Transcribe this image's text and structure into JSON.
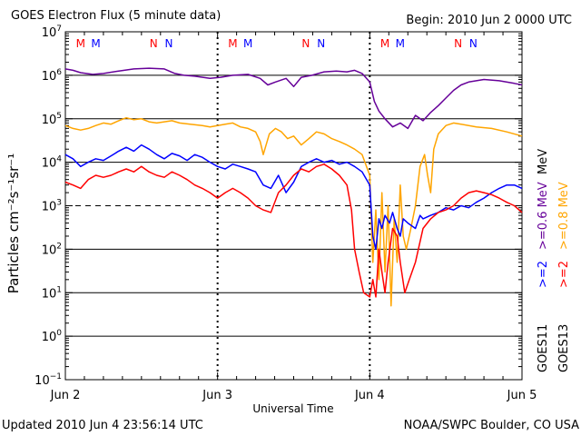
{
  "header": {
    "title": "GOES Electron Flux (5 minute data)",
    "begin": "Begin: 2010 Jun 2 0000 UTC"
  },
  "footer": {
    "updated": "Updated 2010 Jun  4 23:56:14 UTC",
    "credit": "NOAA/SWPC Boulder, CO USA"
  },
  "axes": {
    "xlabel": "Universal Time",
    "ylabel": "Particles cm⁻²s⁻¹sr⁻¹",
    "x_ticks": [
      "Jun 2",
      "Jun 3",
      "Jun 4",
      "Jun 5"
    ],
    "y_ticks": [
      {
        "exp": -1,
        "label": "10",
        "sup": "−1"
      },
      {
        "exp": 0,
        "label": "10",
        "sup": "0"
      },
      {
        "exp": 1,
        "label": "10",
        "sup": "1"
      },
      {
        "exp": 2,
        "label": "10",
        "sup": "2"
      },
      {
        "exp": 3,
        "label": "10",
        "sup": "3"
      },
      {
        "exp": 4,
        "label": "10",
        "sup": "4"
      },
      {
        "exp": 5,
        "label": "10",
        "sup": "5"
      },
      {
        "exp": 6,
        "label": "10",
        "sup": "6"
      },
      {
        "exp": 7,
        "label": "10",
        "sup": "7"
      }
    ]
  },
  "legend": {
    "satellite_1": "GOES11",
    "satellite_2": "GOES13",
    "e06_label": ">=0.6 MeV",
    "e08_label": ">=0.8 MeV",
    "e2_label_1": ">=2",
    "e2_label_2": ">=2",
    "mev": "MeV"
  },
  "markers": [
    {
      "day": 0.1,
      "label": "M",
      "color": "#ff0000"
    },
    {
      "day": 0.2,
      "label": "M",
      "color": "#0000ff"
    },
    {
      "day": 0.58,
      "label": "N",
      "color": "#ff0000"
    },
    {
      "day": 0.68,
      "label": "N",
      "color": "#0000ff"
    },
    {
      "day": 1.1,
      "label": "M",
      "color": "#ff0000"
    },
    {
      "day": 1.2,
      "label": "M",
      "color": "#0000ff"
    },
    {
      "day": 1.58,
      "label": "N",
      "color": "#ff0000"
    },
    {
      "day": 1.68,
      "label": "N",
      "color": "#0000ff"
    },
    {
      "day": 2.1,
      "label": "M",
      "color": "#ff0000"
    },
    {
      "day": 2.2,
      "label": "M",
      "color": "#0000ff"
    },
    {
      "day": 2.58,
      "label": "N",
      "color": "#ff0000"
    },
    {
      "day": 2.68,
      "label": "N",
      "color": "#0000ff"
    }
  ],
  "colors": {
    "purple": "#660099",
    "orange": "#ffa500",
    "blue": "#0000ff",
    "red": "#ff0000"
  },
  "chart_data": {
    "type": "line",
    "title": "GOES Electron Flux (5 minute data)",
    "xlabel": "Universal Time",
    "ylabel": "Particles cm⁻²s⁻¹sr⁻¹",
    "xlim": [
      0,
      3
    ],
    "ylim": [
      0.1,
      10000000
    ],
    "y_scale": "log",
    "dashed_reference": 1000,
    "series": [
      {
        "name": "GOES11 >=0.6 MeV",
        "color": "#660099",
        "points": [
          [
            0,
            1400000.0
          ],
          [
            0.05,
            1300000.0
          ],
          [
            0.1,
            1150000.0
          ],
          [
            0.18,
            1050000.0
          ],
          [
            0.25,
            1100000.0
          ],
          [
            0.35,
            1250000.0
          ],
          [
            0.45,
            1400000.0
          ],
          [
            0.55,
            1450000.0
          ],
          [
            0.65,
            1400000.0
          ],
          [
            0.72,
            1100000.0
          ],
          [
            0.78,
            1000000.0
          ],
          [
            0.85,
            950000.0
          ],
          [
            0.95,
            850000.0
          ],
          [
            1.02,
            900000.0
          ],
          [
            1.1,
            1000000.0
          ],
          [
            1.2,
            1050000.0
          ],
          [
            1.28,
            850000.0
          ],
          [
            1.33,
            600000.0
          ],
          [
            1.38,
            700000.0
          ],
          [
            1.45,
            850000.0
          ],
          [
            1.5,
            550000.0
          ],
          [
            1.55,
            900000.0
          ],
          [
            1.62,
            1000000.0
          ],
          [
            1.7,
            1200000.0
          ],
          [
            1.78,
            1250000.0
          ],
          [
            1.85,
            1200000.0
          ],
          [
            1.9,
            1300000.0
          ],
          [
            1.95,
            1100000.0
          ],
          [
            2.0,
            700000.0
          ],
          [
            2.03,
            250000.0
          ],
          [
            2.06,
            150000.0
          ],
          [
            2.1,
            100000.0
          ],
          [
            2.15,
            65000.0
          ],
          [
            2.2,
            80000.0
          ],
          [
            2.25,
            60000.0
          ],
          [
            2.3,
            120000.0
          ],
          [
            2.35,
            90000.0
          ],
          [
            2.4,
            140000.0
          ],
          [
            2.45,
            200000.0
          ],
          [
            2.5,
            300000.0
          ],
          [
            2.55,
            450000.0
          ],
          [
            2.6,
            600000.0
          ],
          [
            2.65,
            700000.0
          ],
          [
            2.75,
            800000.0
          ],
          [
            2.85,
            750000.0
          ],
          [
            2.95,
            650000.0
          ],
          [
            3.0,
            600000.0
          ]
        ]
      },
      {
        "name": "GOES13 >=0.8 MeV",
        "color": "#ffa500",
        "points": [
          [
            0,
            70000.0
          ],
          [
            0.05,
            60000.0
          ],
          [
            0.1,
            55000.0
          ],
          [
            0.15,
            60000.0
          ],
          [
            0.2,
            70000.0
          ],
          [
            0.25,
            80000.0
          ],
          [
            0.3,
            75000.0
          ],
          [
            0.35,
            90000.0
          ],
          [
            0.4,
            105000.0
          ],
          [
            0.45,
            95000.0
          ],
          [
            0.5,
            100000.0
          ],
          [
            0.55,
            85000.0
          ],
          [
            0.6,
            80000.0
          ],
          [
            0.65,
            85000.0
          ],
          [
            0.7,
            90000.0
          ],
          [
            0.75,
            80000.0
          ],
          [
            0.82,
            75000.0
          ],
          [
            0.9,
            70000.0
          ],
          [
            0.95,
            65000.0
          ],
          [
            1.0,
            70000.0
          ],
          [
            1.05,
            75000.0
          ],
          [
            1.1,
            80000.0
          ],
          [
            1.15,
            65000.0
          ],
          [
            1.2,
            60000.0
          ],
          [
            1.25,
            50000.0
          ],
          [
            1.28,
            30000.0
          ],
          [
            1.3,
            15000.0
          ],
          [
            1.34,
            45000.0
          ],
          [
            1.38,
            60000.0
          ],
          [
            1.42,
            50000.0
          ],
          [
            1.46,
            35000.0
          ],
          [
            1.5,
            40000.0
          ],
          [
            1.55,
            25000.0
          ],
          [
            1.6,
            35000.0
          ],
          [
            1.65,
            50000.0
          ],
          [
            1.7,
            45000.0
          ],
          [
            1.75,
            35000.0
          ],
          [
            1.8,
            30000.0
          ],
          [
            1.85,
            25000.0
          ],
          [
            1.9,
            20000.0
          ],
          [
            1.95,
            15000.0
          ],
          [
            2.0,
            5000.0
          ],
          [
            2.02,
            50
          ],
          [
            2.04,
            800
          ],
          [
            2.06,
            20
          ],
          [
            2.08,
            2000
          ],
          [
            2.1,
            30
          ],
          [
            2.12,
            1000
          ],
          [
            2.14,
            5
          ],
          [
            2.16,
            500
          ],
          [
            2.18,
            50
          ],
          [
            2.2,
            3000
          ],
          [
            2.22,
            200
          ],
          [
            2.24,
            100
          ],
          [
            2.27,
            300
          ],
          [
            2.3,
            1000
          ],
          [
            2.33,
            8000
          ],
          [
            2.36,
            15000.0
          ],
          [
            2.38,
            5000
          ],
          [
            2.4,
            2000
          ],
          [
            2.42,
            20000.0
          ],
          [
            2.45,
            45000.0
          ],
          [
            2.5,
            70000.0
          ],
          [
            2.55,
            80000.0
          ],
          [
            2.6,
            75000.0
          ],
          [
            2.7,
            65000.0
          ],
          [
            2.8,
            60000.0
          ],
          [
            2.9,
            50000.0
          ],
          [
            3.0,
            40000.0
          ]
        ]
      },
      {
        "name": "GOES11 >=2 MeV",
        "color": "#0000ff",
        "points": [
          [
            0,
            15000.0
          ],
          [
            0.05,
            12000.0
          ],
          [
            0.1,
            8000.0
          ],
          [
            0.15,
            10000.0
          ],
          [
            0.2,
            12000.0
          ],
          [
            0.25,
            11000.0
          ],
          [
            0.3,
            14000.0
          ],
          [
            0.35,
            18000.0
          ],
          [
            0.4,
            22000.0
          ],
          [
            0.45,
            18000.0
          ],
          [
            0.5,
            25000.0
          ],
          [
            0.55,
            20000.0
          ],
          [
            0.6,
            15000.0
          ],
          [
            0.65,
            12000.0
          ],
          [
            0.7,
            16000.0
          ],
          [
            0.75,
            14000.0
          ],
          [
            0.8,
            11000.0
          ],
          [
            0.85,
            15000.0
          ],
          [
            0.9,
            13000.0
          ],
          [
            0.95,
            10000.0
          ],
          [
            1.0,
            8000.0
          ],
          [
            1.05,
            7000.0
          ],
          [
            1.1,
            9000.0
          ],
          [
            1.15,
            8000.0
          ],
          [
            1.2,
            7000.0
          ],
          [
            1.25,
            6000.0
          ],
          [
            1.3,
            3000.0
          ],
          [
            1.35,
            2500.0
          ],
          [
            1.4,
            5000.0
          ],
          [
            1.45,
            2000.0
          ],
          [
            1.5,
            3500.0
          ],
          [
            1.55,
            8000.0
          ],
          [
            1.6,
            10000.0
          ],
          [
            1.65,
            12000.0
          ],
          [
            1.7,
            10000.0
          ],
          [
            1.75,
            11000.0
          ],
          [
            1.8,
            9000.0
          ],
          [
            1.85,
            10000.0
          ],
          [
            1.9,
            8000.0
          ],
          [
            1.95,
            6000.0
          ],
          [
            2.0,
            3000.0
          ],
          [
            2.02,
            200
          ],
          [
            2.04,
            100
          ],
          [
            2.06,
            500
          ],
          [
            2.08,
            300
          ],
          [
            2.1,
            600
          ],
          [
            2.13,
            400
          ],
          [
            2.15,
            700
          ],
          [
            2.18,
            300
          ],
          [
            2.2,
            200
          ],
          [
            2.22,
            500
          ],
          [
            2.25,
            400
          ],
          [
            2.3,
            300
          ],
          [
            2.33,
            600
          ],
          [
            2.35,
            500
          ],
          [
            2.4,
            600
          ],
          [
            2.45,
            700
          ],
          [
            2.5,
            900
          ],
          [
            2.55,
            800
          ],
          [
            2.6,
            1000
          ],
          [
            2.65,
            900
          ],
          [
            2.7,
            1200
          ],
          [
            2.75,
            1500
          ],
          [
            2.8,
            2000
          ],
          [
            2.85,
            2500
          ],
          [
            2.9,
            3000
          ],
          [
            2.95,
            3000
          ],
          [
            3.0,
            2500
          ]
        ]
      },
      {
        "name": "GOES13 >=2 MeV",
        "color": "#ff0000",
        "points": [
          [
            0,
            3500.0
          ],
          [
            0.05,
            3000.0
          ],
          [
            0.1,
            2500.0
          ],
          [
            0.15,
            4000.0
          ],
          [
            0.2,
            5000.0
          ],
          [
            0.25,
            4500.0
          ],
          [
            0.3,
            5000.0
          ],
          [
            0.35,
            6000.0
          ],
          [
            0.4,
            7000.0
          ],
          [
            0.45,
            6000.0
          ],
          [
            0.5,
            8000.0
          ],
          [
            0.55,
            6000.0
          ],
          [
            0.6,
            5000.0
          ],
          [
            0.65,
            4500.0
          ],
          [
            0.7,
            6000.0
          ],
          [
            0.75,
            5000.0
          ],
          [
            0.8,
            4000.0
          ],
          [
            0.85,
            3000.0
          ],
          [
            0.9,
            2500.0
          ],
          [
            0.95,
            2000.0
          ],
          [
            1.0,
            1500.0
          ],
          [
            1.05,
            2000.0
          ],
          [
            1.1,
            2500.0
          ],
          [
            1.15,
            2000.0
          ],
          [
            1.2,
            1500.0
          ],
          [
            1.25,
            1000.0
          ],
          [
            1.3,
            800
          ],
          [
            1.35,
            700
          ],
          [
            1.4,
            2000.0
          ],
          [
            1.45,
            3000.0
          ],
          [
            1.5,
            5000.0
          ],
          [
            1.55,
            7000.0
          ],
          [
            1.6,
            6000.0
          ],
          [
            1.65,
            8000.0
          ],
          [
            1.7,
            9000.0
          ],
          [
            1.75,
            7000.0
          ],
          [
            1.8,
            5000.0
          ],
          [
            1.85,
            3000.0
          ],
          [
            1.88,
            800
          ],
          [
            1.9,
            100
          ],
          [
            1.93,
            30
          ],
          [
            1.96,
            10
          ],
          [
            2.0,
            8
          ],
          [
            2.02,
            20
          ],
          [
            2.04,
            8
          ],
          [
            2.06,
            100
          ],
          [
            2.08,
            30
          ],
          [
            2.1,
            10
          ],
          [
            2.12,
            50
          ],
          [
            2.15,
            300
          ],
          [
            2.18,
            200
          ],
          [
            2.2,
            50
          ],
          [
            2.23,
            10
          ],
          [
            2.26,
            20
          ],
          [
            2.3,
            50
          ],
          [
            2.35,
            300
          ],
          [
            2.4,
            500
          ],
          [
            2.45,
            700
          ],
          [
            2.5,
            800
          ],
          [
            2.55,
            1000
          ],
          [
            2.6,
            1500
          ],
          [
            2.65,
            2000
          ],
          [
            2.7,
            2200
          ],
          [
            2.75,
            2000
          ],
          [
            2.8,
            1800
          ],
          [
            2.85,
            1500
          ],
          [
            2.9,
            1200
          ],
          [
            2.95,
            1000
          ],
          [
            3.0,
            700
          ]
        ]
      }
    ]
  }
}
